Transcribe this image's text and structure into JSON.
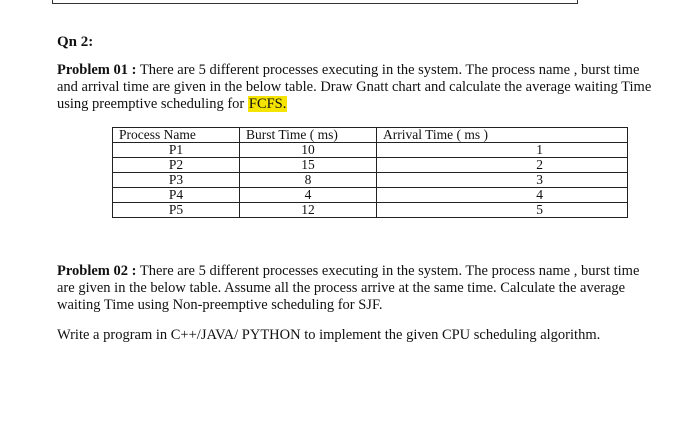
{
  "question_label": "Qn 2:",
  "problem1": {
    "label": "Problem 01 :",
    "text": " There are 5 different processes executing in the system. The process name , burst time and arrival time are given in the below table. Draw Gnatt chart and calculate the average waiting Time using preemptive scheduling for ",
    "highlight": "FCFS."
  },
  "table": {
    "headers": [
      "Process Name",
      "Burst Time ( ms)",
      "Arrival Time ( ms )"
    ],
    "rows": [
      [
        "P1",
        "10",
        "1"
      ],
      [
        "P2",
        "15",
        "2"
      ],
      [
        "P3",
        "8",
        "3"
      ],
      [
        "P4",
        "4",
        "4"
      ],
      [
        "P5",
        "12",
        "5"
      ]
    ]
  },
  "problem2": {
    "label": "Problem 02 :",
    "text": " There are 5 different processes executing in the system. The process name , burst time are given in the below table. Assume all the process arrive at the same time. Calculate the average waiting Time using Non-preemptive scheduling for SJF."
  },
  "program_note": "Write a program in C++/JAVA/ PYTHON to implement the given CPU scheduling algorithm.",
  "colors": {
    "highlight": "#f5e300"
  }
}
